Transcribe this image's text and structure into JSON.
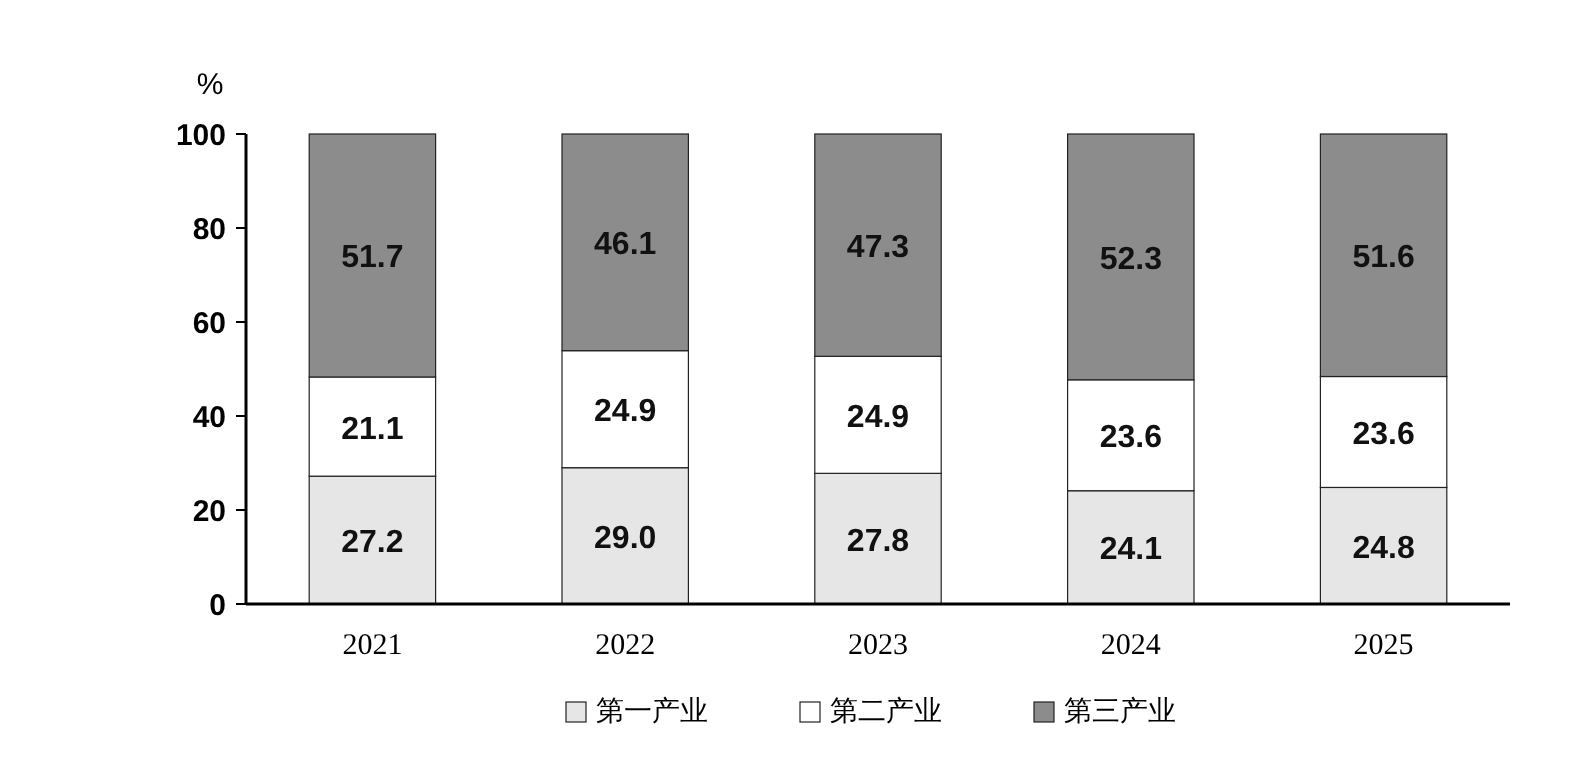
{
  "chart_data": {
    "type": "bar",
    "stacked": true,
    "ylabel": "%",
    "categories": [
      "2021",
      "2022",
      "2023",
      "2024",
      "2025"
    ],
    "ylim": [
      0,
      100
    ],
    "yticks": [
      0,
      20,
      40,
      60,
      80,
      100
    ],
    "grid": false,
    "legend": "bottom",
    "series": [
      {
        "name": "第一产业",
        "color": "#e6e6e6",
        "values": [
          27.2,
          29.0,
          27.8,
          24.1,
          24.8
        ],
        "value_labels": [
          "27.2",
          "29.0",
          "27.8",
          "24.1",
          "24.8"
        ]
      },
      {
        "name": "第二产业",
        "color": "#ffffff",
        "values": [
          21.1,
          24.9,
          24.9,
          23.6,
          23.6
        ],
        "value_labels": [
          "21.1",
          "24.9",
          "24.9",
          "23.6",
          "23.6"
        ]
      },
      {
        "name": "第三产业",
        "color": "#8c8c8c",
        "values": [
          51.7,
          46.1,
          47.3,
          52.3,
          51.6
        ],
        "value_labels": [
          "51.7",
          "46.1",
          "47.3",
          "52.3",
          "51.6"
        ]
      }
    ]
  }
}
